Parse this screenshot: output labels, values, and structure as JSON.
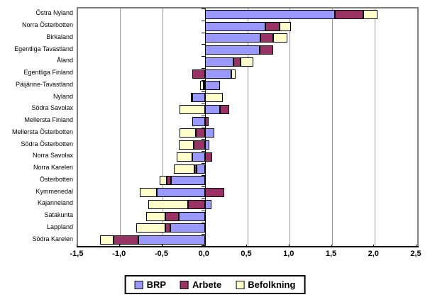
{
  "chart_data": {
    "type": "bar",
    "orientation": "horizontal",
    "stacked": true,
    "title": "",
    "xlabel": "",
    "ylabel": "",
    "xlim": [
      -1.5,
      2.5
    ],
    "grid": true,
    "legend_position": "bottom",
    "decimal_style": "comma",
    "categories": [
      "Östra Nyland",
      "Norra Österbotten",
      "Birkaland",
      "Egentliga Tavastland",
      "Åland",
      "Egentliga Finland",
      "Päijänne-Tavastland",
      "Nyland",
      "Södra Savolax",
      "Mellersta Finland",
      "Mellersta Österbotten",
      "Södra Österbotten",
      "Norra Savolax",
      "Norra Karelen",
      "Österbotten",
      "Kymmenedal",
      "Kajanneland",
      "Satakunta",
      "Lappland",
      "Södra Karelen"
    ],
    "series": [
      {
        "name": "BRP",
        "color": "#9999FF",
        "values": [
          1.53,
          0.71,
          0.65,
          0.64,
          0.33,
          0.31,
          0.17,
          -0.15,
          0.17,
          -0.15,
          0.11,
          0.05,
          -0.15,
          -0.1,
          -0.4,
          -0.57,
          0.07,
          -0.31,
          -0.41,
          -0.79
        ]
      },
      {
        "name": "Arbete",
        "color": "#993366",
        "values": [
          0.33,
          0.17,
          0.15,
          0.16,
          0.09,
          -0.15,
          -0.02,
          -0.02,
          0.11,
          0.04,
          -0.11,
          -0.14,
          0.08,
          -0.03,
          -0.05,
          0.22,
          -0.2,
          -0.16,
          -0.06,
          -0.29
        ]
      },
      {
        "name": "Befolkning",
        "color": "#FFFFCC",
        "values": [
          0.17,
          0.13,
          0.17,
          0.0,
          0.15,
          0.05,
          -0.04,
          0.21,
          -0.3,
          0.0,
          -0.19,
          -0.17,
          -0.19,
          -0.24,
          -0.09,
          -0.2,
          -0.47,
          -0.23,
          -0.34,
          -0.16
        ]
      }
    ],
    "gridline_values": [
      -1.0,
      -0.5,
      0.5,
      1.0,
      1.5,
      2.0
    ],
    "xtick_values": [
      -1.5,
      -1.0,
      -0.5,
      0.0,
      0.5,
      1.0,
      1.5,
      2.0,
      2.5
    ],
    "xtick_labels": [
      "-1,5",
      "-1,0",
      "-0,5",
      "0,0",
      "0,5",
      "1,0",
      "1,5",
      "2,0",
      "2,5"
    ]
  }
}
